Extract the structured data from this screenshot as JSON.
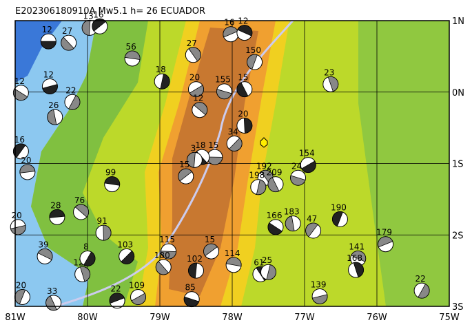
{
  "map": {
    "title": "E202306180910A Mw5.1 h= 26 ECUADOR",
    "lonlim": [
      -81,
      -75
    ],
    "latlim": [
      -3,
      1
    ],
    "lonticks": [
      {
        "value": -81,
        "label": "81W"
      },
      {
        "value": -80,
        "label": "80W"
      },
      {
        "value": -79,
        "label": "79W"
      },
      {
        "value": -78,
        "label": "78W"
      },
      {
        "value": -77,
        "label": "77W"
      },
      {
        "value": -76,
        "label": "76W"
      },
      {
        "value": -75,
        "label": "75W"
      }
    ],
    "latticks": [
      {
        "value": 1,
        "label": "1N"
      },
      {
        "value": 0,
        "label": "0N"
      },
      {
        "value": -1,
        "label": "1S"
      },
      {
        "value": -2,
        "label": "2S"
      },
      {
        "value": -3,
        "label": "3S"
      }
    ],
    "events": [
      {
        "label": "12",
        "lon": -80.54,
        "lat": 0.71
      },
      {
        "label": "27",
        "lon": -80.26,
        "lat": 0.69
      },
      {
        "label": "13",
        "lon": -79.97,
        "lat": 0.9
      },
      {
        "label": "16",
        "lon": -79.83,
        "lat": 0.92
      },
      {
        "label": "56",
        "lon": -79.38,
        "lat": 0.47
      },
      {
        "label": "27",
        "lon": -78.54,
        "lat": 0.52
      },
      {
        "label": "18",
        "lon": -78.97,
        "lat": 0.15
      },
      {
        "label": "20",
        "lon": -78.5,
        "lat": 0.04
      },
      {
        "label": "155",
        "lon": -78.11,
        "lat": 0.01
      },
      {
        "label": "15",
        "lon": -77.83,
        "lat": 0.04
      },
      {
        "label": "150",
        "lon": -77.69,
        "lat": 0.42
      },
      {
        "label": "16",
        "lon": -78.02,
        "lat": 0.81
      },
      {
        "label": "12",
        "lon": -77.83,
        "lat": 0.83
      },
      {
        "label": "23",
        "lon": -76.64,
        "lat": 0.11
      },
      {
        "label": "22",
        "lon": -80.21,
        "lat": -0.14
      },
      {
        "label": "12",
        "lon": -80.52,
        "lat": 0.08
      },
      {
        "label": "12",
        "lon": -80.92,
        "lat": -0.01
      },
      {
        "label": "26",
        "lon": -80.45,
        "lat": -0.35
      },
      {
        "label": "16",
        "lon": -80.92,
        "lat": -0.83
      },
      {
        "label": "20",
        "lon": -80.83,
        "lat": -1.12
      },
      {
        "label": "12",
        "lon": -78.45,
        "lat": -0.25
      },
      {
        "label": "20",
        "lon": -77.83,
        "lat": -0.47
      },
      {
        "label": "34",
        "lon": -77.97,
        "lat": -0.72
      },
      {
        "label": "15",
        "lon": -78.24,
        "lat": -0.91
      },
      {
        "label": "18",
        "lon": -78.42,
        "lat": -0.91
      },
      {
        "label": "3",
        "lon": -78.52,
        "lat": -0.95
      },
      {
        "label": "15",
        "lon": -78.64,
        "lat": -1.18
      },
      {
        "label": "99",
        "lon": -79.66,
        "lat": -1.29
      },
      {
        "label": "192",
        "lon": -77.54,
        "lat": -1.2
      },
      {
        "label": "198",
        "lon": -77.64,
        "lat": -1.33
      },
      {
        "label": "154",
        "lon": -76.95,
        "lat": -1.02
      },
      {
        "label": "24",
        "lon": -77.09,
        "lat": -1.2
      },
      {
        "label": "209",
        "lon": -77.4,
        "lat": -1.29
      },
      {
        "label": "190",
        "lon": -76.51,
        "lat": -1.78
      },
      {
        "label": "179",
        "lon": -75.88,
        "lat": -2.13
      },
      {
        "label": "141",
        "lon": -76.26,
        "lat": -2.33
      },
      {
        "label": "168",
        "lon": -76.29,
        "lat": -2.49
      },
      {
        "label": "22",
        "lon": -75.38,
        "lat": -2.78
      },
      {
        "label": "139",
        "lon": -76.79,
        "lat": -2.86
      },
      {
        "label": "166",
        "lon": -77.4,
        "lat": -1.89
      },
      {
        "label": "183",
        "lon": -77.16,
        "lat": -1.84
      },
      {
        "label": "47",
        "lon": -76.88,
        "lat": -1.94
      },
      {
        "label": "28",
        "lon": -80.42,
        "lat": -1.75
      },
      {
        "label": "76",
        "lon": -80.09,
        "lat": -1.68
      },
      {
        "label": "91",
        "lon": -79.78,
        "lat": -1.97
      },
      {
        "label": "103",
        "lon": -79.46,
        "lat": -2.3
      },
      {
        "label": "115",
        "lon": -78.88,
        "lat": -2.23
      },
      {
        "label": "180",
        "lon": -78.95,
        "lat": -2.45
      },
      {
        "label": "102",
        "lon": -78.5,
        "lat": -2.5
      },
      {
        "label": "15",
        "lon": -78.29,
        "lat": -2.23
      },
      {
        "label": "114",
        "lon": -77.98,
        "lat": -2.42
      },
      {
        "label": "61",
        "lon": -77.61,
        "lat": -2.55
      },
      {
        "label": "25",
        "lon": -77.5,
        "lat": -2.52
      },
      {
        "label": "109",
        "lon": -79.3,
        "lat": -2.87
      },
      {
        "label": "85",
        "lon": -78.56,
        "lat": -2.9
      },
      {
        "label": "33",
        "lon": -80.47,
        "lat": -2.95
      },
      {
        "label": "20",
        "lon": -80.9,
        "lat": -2.87
      },
      {
        "label": "22",
        "lon": -79.59,
        "lat": -2.92
      },
      {
        "label": "39",
        "lon": -80.59,
        "lat": -2.3
      },
      {
        "label": "120",
        "lon": -80.07,
        "lat": -2.55
      },
      {
        "label": "8",
        "lon": -80.0,
        "lat": -2.33
      },
      {
        "label": "20",
        "lon": -80.96,
        "lat": -1.89
      }
    ]
  }
}
